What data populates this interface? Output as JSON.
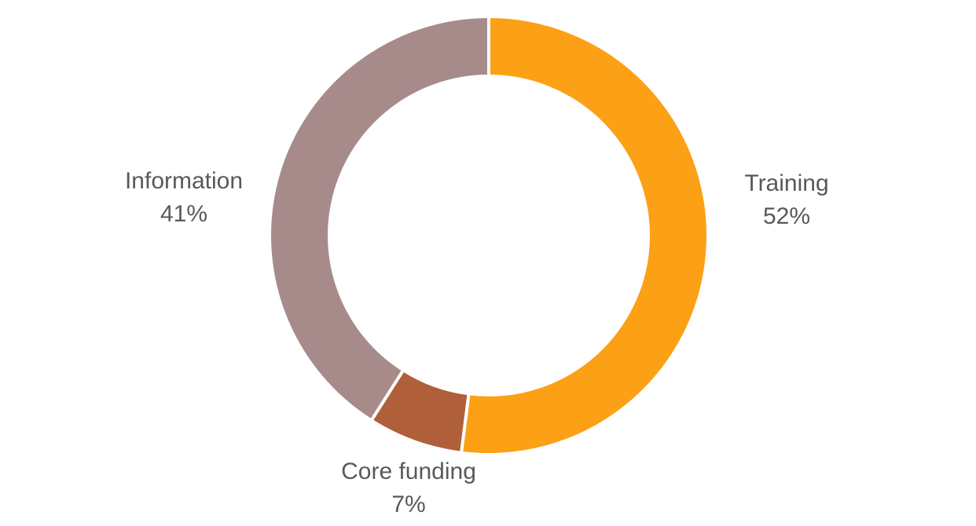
{
  "chart_data": {
    "type": "pie",
    "subtype": "doughnut",
    "title": "",
    "categories": [
      "Training",
      "Core funding",
      "Information"
    ],
    "values": [
      52,
      7,
      41
    ],
    "slices": [
      {
        "label": "Training",
        "value": 52,
        "pct_text": "52%",
        "color": "#FCA016"
      },
      {
        "label": "Core funding",
        "value": 7,
        "pct_text": "7%",
        "color": "#AF603A"
      },
      {
        "label": "Information",
        "value": 41,
        "pct_text": "41%",
        "color": "#A78B8B"
      }
    ],
    "start_angle_deg": 0,
    "direction": "clockwise",
    "hole_ratio": 0.73,
    "legend_position": "none",
    "grid": "off",
    "data_labels": "category name and percentage, outside end",
    "label_color": "#595959",
    "separator_color": "#FFFFFF",
    "background_color": "#FFFFFF"
  }
}
